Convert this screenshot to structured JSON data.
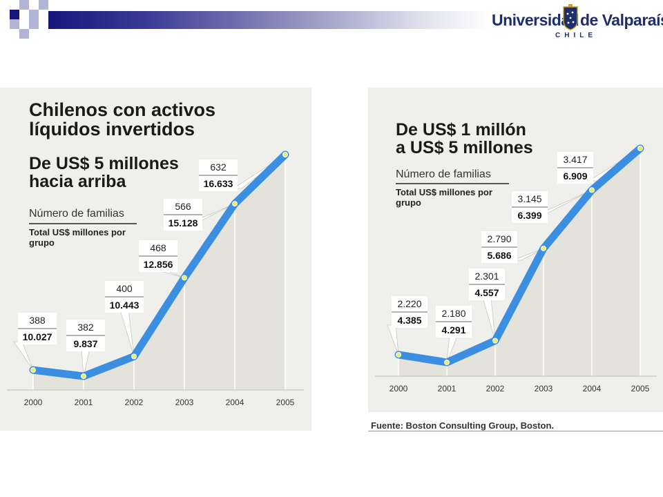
{
  "header": {
    "logo_word_1": "Universidad",
    "logo_word_2": "de Valparaíso",
    "logo_country": "CHILE",
    "colors": {
      "primary": "#16167e",
      "light": "#9a9ac6",
      "logo": "#1d2d6e"
    }
  },
  "charts": {
    "left": {
      "title": "Chilenos con activos\nlíquidos invertidos",
      "subtitle": "De US$ 5 millones\nhacia arriba",
      "legend_families": "Número de familias",
      "legend_total": "Total US$ millones\npor grupo"
    },
    "right": {
      "subtitle": "De US$ 1 millón\na US$ 5 millones",
      "legend_families": "Número de familias",
      "legend_total": "Total US$ millones\npor grupo"
    }
  },
  "chart_data": [
    {
      "type": "line",
      "title": "Chilenos con activos líquidos invertidos",
      "subtitle": "De US$ 5 millones hacia arriba",
      "x": [
        "2000",
        "2001",
        "2002",
        "2003",
        "2004",
        "2005"
      ],
      "series": [
        {
          "name": "Número de familias",
          "values": [
            "388",
            "382",
            "400",
            "468",
            "566",
            "632"
          ]
        },
        {
          "name": "Total US$ millones por grupo",
          "values": [
            "10.027",
            "9.837",
            "10.443",
            "12.856",
            "15.128",
            "16.633"
          ]
        }
      ],
      "line_color": "#3b8ee0"
    },
    {
      "type": "line",
      "subtitle": "De US$ 1 millón a US$ 5 millones",
      "x": [
        "2000",
        "2001",
        "2002",
        "2003",
        "2004",
        "2005"
      ],
      "series": [
        {
          "name": "Número de familias",
          "values": [
            "2.220",
            "2.180",
            "2.301",
            "2.790",
            "3.145",
            "3.417"
          ]
        },
        {
          "name": "Total US$ millones por grupo",
          "values": [
            "4.385",
            "4.291",
            "4.557",
            "5.686",
            "6.399",
            "6.909"
          ]
        }
      ],
      "line_color": "#3b8ee0"
    }
  ],
  "footer": {
    "source": "Fuente: Boston Consulting Group, Boston."
  }
}
